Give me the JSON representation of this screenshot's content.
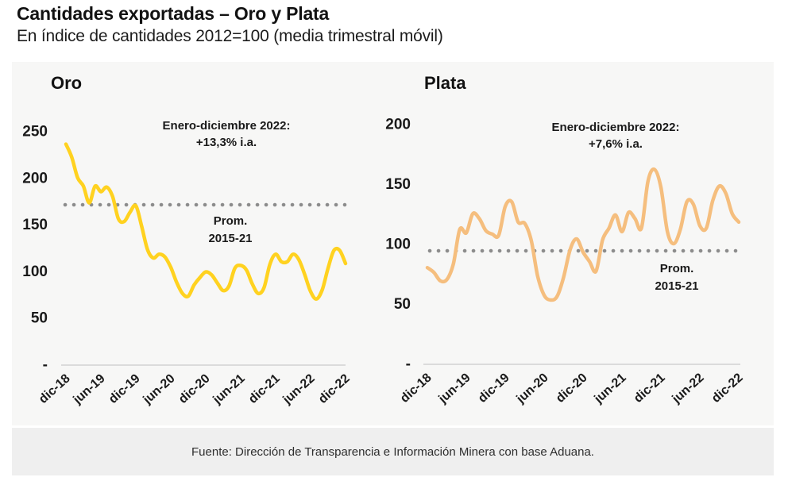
{
  "page": {
    "title": "Cantidades exportadas – Oro y Plata",
    "subtitle": "En índice de cantidades 2012=100 (media trimestral móvil)",
    "source": "Fuente: Dirección de Transparencia e Información Minera con base Aduana."
  },
  "colors": {
    "oro_line": "#FFD220",
    "plata_line": "#F5BE7E",
    "average_dotted": "#8C8C8C",
    "axis_line": "#D2D2D2",
    "card_bg": "#F7F7F6",
    "footer_bg": "#EFEFEF",
    "text": "#1A1A1A"
  },
  "chart_data": [
    {
      "type": "line",
      "title": "Oro",
      "annotation": [
        "Enero-diciembre 2022:",
        "+13,3% i.a."
      ],
      "average_label": [
        "Prom.",
        "2015-21"
      ],
      "average_value": 171,
      "x_start": "dic-18",
      "x_end": "dic-22",
      "x_frequency": "monthly",
      "x_tick_every": 6,
      "x_tick_labels": [
        "dic-18",
        "jun-19",
        "dic-19",
        "jun-20",
        "dic-20",
        "jun-21",
        "dic-21",
        "jun-22",
        "dic-22"
      ],
      "values": [
        236,
        222,
        200,
        191,
        173,
        191,
        185,
        190,
        180,
        156,
        153,
        163,
        170,
        148,
        123,
        114,
        118,
        115,
        104,
        88,
        76,
        73,
        85,
        93,
        99,
        96,
        87,
        79,
        84,
        103,
        106,
        101,
        86,
        76,
        82,
        107,
        118,
        110,
        110,
        118,
        112,
        96,
        78,
        70,
        80,
        103,
        122,
        122,
        108
      ],
      "ylim": [
        0,
        260
      ],
      "y_ticks": [
        {
          "label": "250",
          "value": 250
        },
        {
          "label": "200",
          "value": 200
        },
        {
          "label": "150",
          "value": 150
        },
        {
          "label": "100",
          "value": 100
        },
        {
          "label": "50",
          "value": 50
        },
        {
          "label": "-",
          "value": 0
        }
      ],
      "grid": false,
      "legend": "none"
    },
    {
      "type": "line",
      "title": "Plata",
      "annotation": [
        "Enero-diciembre 2022:",
        "+7,6% i.a."
      ],
      "average_label": [
        "Prom.",
        "2015-21"
      ],
      "average_value": 94,
      "x_start": "dic-18",
      "x_end": "dic-22",
      "x_frequency": "monthly",
      "x_tick_every": 6,
      "x_tick_labels": [
        "dic-18",
        "jun-19",
        "dic-19",
        "jun-20",
        "dic-20",
        "jun-21",
        "dic-21",
        "jun-22",
        "dic-22"
      ],
      "values": [
        80,
        76,
        69,
        70,
        83,
        112,
        109,
        125,
        121,
        111,
        108,
        107,
        131,
        135,
        118,
        117,
        103,
        73,
        57,
        53,
        56,
        72,
        95,
        104,
        93,
        85,
        77,
        103,
        113,
        124,
        110,
        126,
        121,
        113,
        152,
        162,
        147,
        110,
        100,
        112,
        135,
        133,
        115,
        113,
        136,
        148,
        142,
        125,
        118
      ],
      "ylim": [
        0,
        210
      ],
      "y_ticks": [
        {
          "label": "200",
          "value": 200
        },
        {
          "label": "150",
          "value": 150
        },
        {
          "label": "100",
          "value": 100
        },
        {
          "label": "50",
          "value": 50
        },
        {
          "label": "-",
          "value": 0
        }
      ],
      "grid": false,
      "legend": "none"
    }
  ]
}
